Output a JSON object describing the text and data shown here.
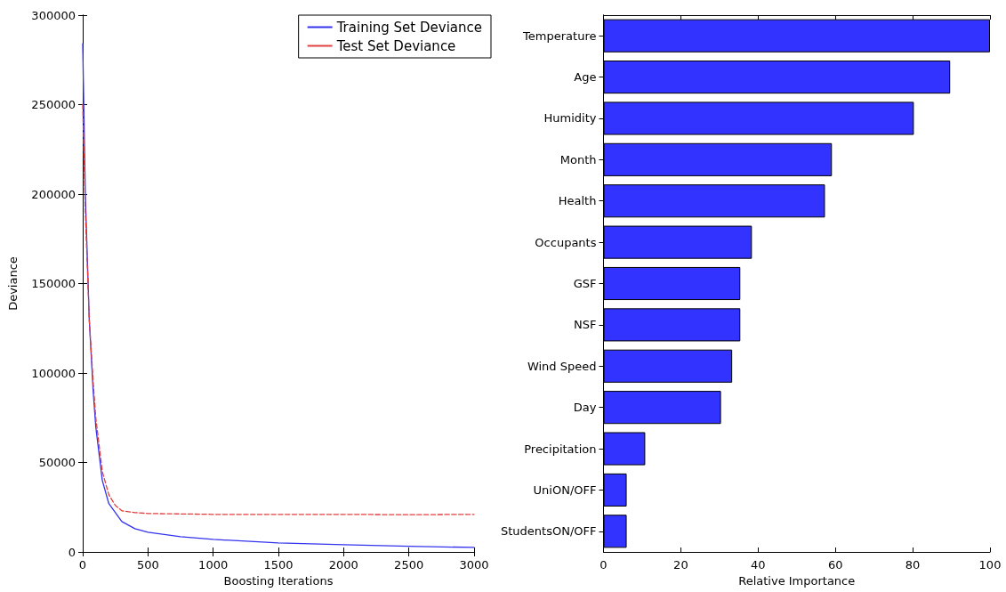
{
  "chart_data": [
    {
      "type": "line",
      "xlabel": "Boosting Iterations",
      "ylabel": "Deviance",
      "xlim": [
        0,
        3000
      ],
      "ylim": [
        0,
        300000
      ],
      "xticks": [
        0,
        500,
        1000,
        1500,
        2000,
        2500,
        3000
      ],
      "yticks": [
        0,
        50000,
        100000,
        150000,
        200000,
        250000,
        300000
      ],
      "grid": false,
      "legend": "top right",
      "marker": "none",
      "series": [
        {
          "name": "Training Set Deviance",
          "color": "#3333ee",
          "line_style": "solid",
          "x": [
            0,
            20,
            50,
            80,
            100,
            150,
            200,
            300,
            400,
            500,
            750,
            1000,
            1500,
            2000,
            2500,
            3000
          ],
          "values": [
            284000,
            200000,
            130000,
            90000,
            70000,
            40000,
            27000,
            17000,
            13000,
            11000,
            8500,
            7000,
            5000,
            4000,
            3200,
            2500
          ]
        },
        {
          "name": "Test Set Deviance",
          "color": "#e04040",
          "line_style": "dashed",
          "x": [
            0,
            20,
            50,
            80,
            100,
            150,
            200,
            250,
            300,
            400,
            500,
            1000,
            1500,
            2000,
            2500,
            3000
          ],
          "values": [
            250000,
            190000,
            130000,
            95000,
            75000,
            45000,
            32000,
            26000,
            23000,
            22000,
            21500,
            21000,
            21000,
            21000,
            20800,
            21000
          ]
        }
      ]
    },
    {
      "type": "bar",
      "orientation": "horizontal",
      "xlabel": "Relative Importance",
      "xlim": [
        0,
        100
      ],
      "xticks": [
        0,
        20,
        40,
        60,
        80,
        100
      ],
      "grid": false,
      "color": "#3333ff",
      "categories": [
        "Temperature",
        "Age",
        "Humidity",
        "Month",
        "Health",
        "Occupants",
        "GSF",
        "NSF",
        "Wind Speed",
        "Day",
        "Precipitation",
        "UniON/OFF",
        "StudentsON/OFF"
      ],
      "values": [
        100,
        89.7,
        80.3,
        59.1,
        57.3,
        38.4,
        35.4,
        35.4,
        33.3,
        30.4,
        10.8,
        6.0,
        6.0
      ]
    }
  ]
}
